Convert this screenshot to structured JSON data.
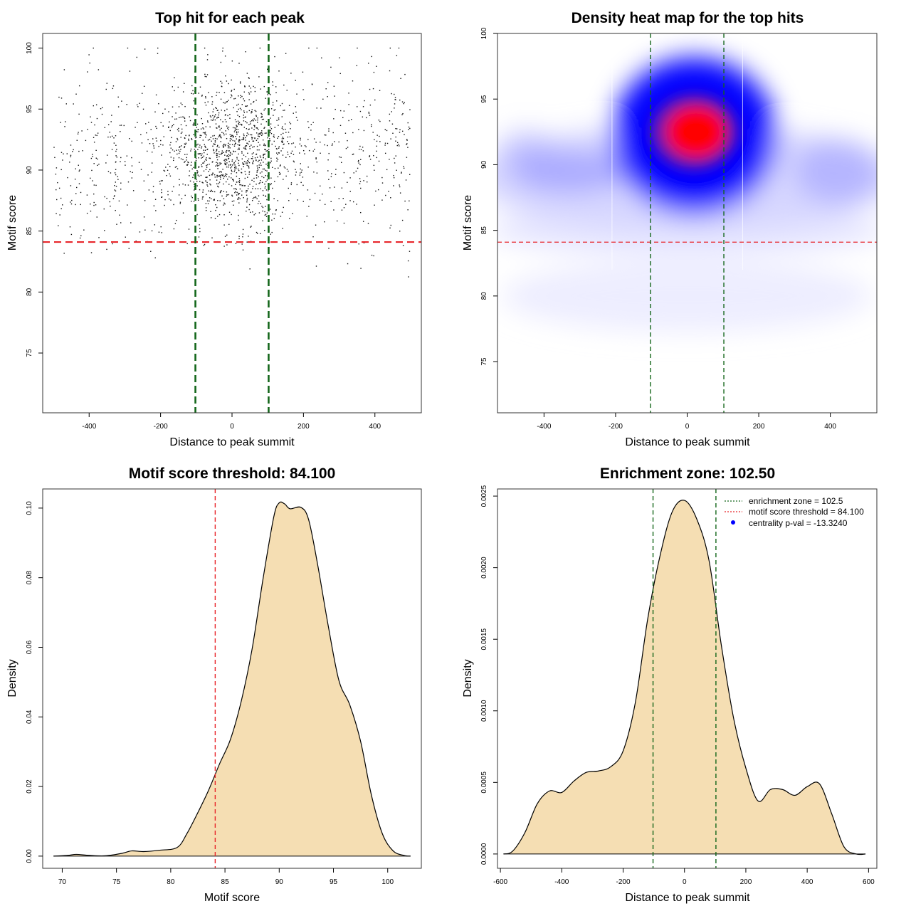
{
  "colors": {
    "threshold_line": "#e8262b",
    "zone_line": "#13661a",
    "density_fill": "#f5deb3",
    "point": "#111111",
    "legend_point": "#0000ff"
  },
  "chart_data": [
    {
      "type": "scatter",
      "title": "Top hit for each peak",
      "xlabel": "Distance to peak summit",
      "ylabel": "Motif score",
      "xlim": [
        -530,
        530
      ],
      "ylim": [
        70.1,
        101.2
      ],
      "xticks": [
        -400,
        -200,
        0,
        200,
        400
      ],
      "yticks": [
        75,
        80,
        85,
        90,
        95,
        100
      ],
      "hline": 84.1,
      "vlines": [
        -102.5,
        102.5
      ],
      "point_count": 1800,
      "point_distribution": {
        "x_range": [
          -500,
          500
        ],
        "central_mean": 0,
        "central_sd": 90,
        "y_mean": 91.5,
        "y_sd": 3.4,
        "y_range": [
          71,
          100
        ]
      }
    },
    {
      "type": "heatmap",
      "title": "Density heat map for the top hits",
      "xlabel": "Distance to peak summit",
      "ylabel": "Motif score",
      "xlim": [
        -530,
        530
      ],
      "ylim": [
        71.1,
        100
      ],
      "xticks": [
        -400,
        -200,
        0,
        200,
        400
      ],
      "yticks": [
        75,
        80,
        85,
        90,
        95,
        100
      ],
      "hline": 84.1,
      "vlines": [
        -102.5,
        102.5
      ],
      "peak": {
        "x": 20,
        "y": 92.5
      }
    },
    {
      "type": "area",
      "title": "Motif score threshold: 84.100",
      "xlabel": "Motif score",
      "ylabel": "Density",
      "xlim": [
        68.2,
        103.1
      ],
      "ylim": [
        -0.0035,
        0.1055
      ],
      "xticks": [
        70,
        75,
        80,
        85,
        90,
        95,
        100
      ],
      "yticks": [
        0.0,
        0.02,
        0.04,
        0.06,
        0.08,
        0.1
      ],
      "ytick_labels": [
        "0.00",
        "0.02",
        "0.04",
        "0.06",
        "0.08",
        "0.10"
      ],
      "vline": 84.1,
      "x": [
        69.2,
        70.5,
        71.3,
        72.5,
        74.0,
        75.5,
        76.4,
        77.5,
        79.0,
        80.6,
        81.5,
        82.5,
        83.5,
        84.5,
        85.5,
        86.5,
        87.5,
        88.5,
        89.5,
        90.0,
        90.5,
        91.0,
        92.0,
        92.7,
        93.5,
        94.5,
        95.5,
        96.5,
        97.5,
        98.5,
        99.5,
        100.5,
        101.5,
        102.1
      ],
      "y": [
        0.0,
        0.0002,
        0.0005,
        0.0002,
        0.0001,
        0.0008,
        0.0015,
        0.0013,
        0.0017,
        0.0025,
        0.0065,
        0.0125,
        0.019,
        0.0265,
        0.0335,
        0.0445,
        0.0595,
        0.0795,
        0.0975,
        0.1015,
        0.1012,
        0.0998,
        0.1002,
        0.0968,
        0.0845,
        0.0665,
        0.0505,
        0.0435,
        0.033,
        0.0175,
        0.0065,
        0.0015,
        0.0002,
        0.0
      ]
    },
    {
      "type": "area",
      "title": "Enrichment zone: 102.50",
      "xlabel": "Distance to peak summit",
      "ylabel": "Density",
      "xlim": [
        -609.5,
        627
      ],
      "ylim": [
        -0.0001,
        0.00255
      ],
      "xticks": [
        -600,
        -400,
        -200,
        0,
        200,
        400,
        600
      ],
      "yticks": [
        0.0,
        0.0005,
        0.001,
        0.0015,
        0.002,
        0.0025
      ],
      "ytick_labels": [
        "0.0000",
        "0.0005",
        "0.0010",
        "0.0015",
        "0.0020",
        "0.0025"
      ],
      "vlines": [
        -102.5,
        102.5
      ],
      "x": [
        -590,
        -560,
        -520,
        -480,
        -440,
        -400,
        -360,
        -320,
        -280,
        -240,
        -200,
        -160,
        -120,
        -80,
        -40,
        0,
        40,
        80,
        120,
        160,
        200,
        240,
        280,
        320,
        360,
        400,
        440,
        480,
        520,
        560,
        590
      ],
      "y": [
        0.0,
        2e-05,
        0.00015,
        0.00035,
        0.00044,
        0.00043,
        0.00051,
        0.00057,
        0.00058,
        0.00061,
        0.00072,
        0.00106,
        0.00164,
        0.00208,
        0.00239,
        0.00247,
        0.00234,
        0.00205,
        0.00146,
        0.00095,
        0.0006,
        0.00037,
        0.00045,
        0.00045,
        0.00041,
        0.00047,
        0.00049,
        0.00028,
        5e-05,
        0.0,
        0.0
      ],
      "legend": {
        "position": "top-right",
        "entries": [
          {
            "label": "enrichment zone = 102.5",
            "style": "dotted-line",
            "color": "#13661a"
          },
          {
            "label": "motif score threshold = 84.100",
            "style": "dotted-line",
            "color": "#e8262b"
          },
          {
            "label": "centrality p-val = -13.3240",
            "style": "point",
            "color": "#0000ff"
          }
        ]
      }
    }
  ]
}
